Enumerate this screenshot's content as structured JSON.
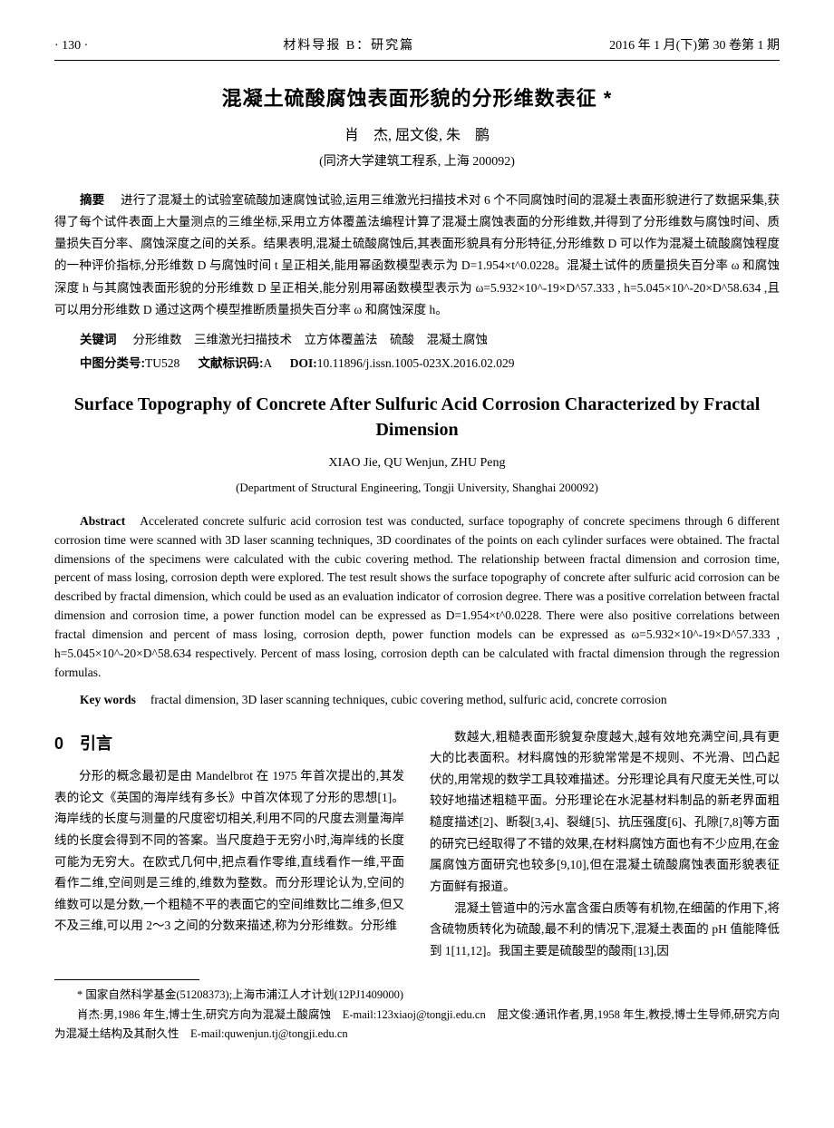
{
  "header": {
    "page_number": "· 130 ·",
    "journal_name": "材料导报 B：研究篇",
    "issue_info": "2016 年 1 月(下)第 30 卷第 1 期"
  },
  "title_cn": "混凝土硫酸腐蚀表面形貌的分形维数表征 *",
  "authors_cn": "肖　杰, 屈文俊, 朱　鹏",
  "affiliation_cn": "(同济大学建筑工程系, 上海 200092)",
  "abstract_cn_label": "摘要",
  "abstract_cn": "进行了混凝土的试验室硫酸加速腐蚀试验,运用三维激光扫描技术对 6 个不同腐蚀时间的混凝土表面形貌进行了数据采集,获得了每个试件表面上大量测点的三维坐标,采用立方体覆盖法编程计算了混凝土腐蚀表面的分形维数,并得到了分形维数与腐蚀时间、质量损失百分率、腐蚀深度之间的关系。结果表明,混凝土硫酸腐蚀后,其表面形貌具有分形特征,分形维数 D 可以作为混凝土硫酸腐蚀程度的一种评价指标,分形维数 D 与腐蚀时间 t 呈正相关,能用幂函数模型表示为 D=1.954×t^0.0228。混凝土试件的质量损失百分率 ω 和腐蚀深度 h 与其腐蚀表面形貌的分形维数 D 呈正相关,能分别用幂函数模型表示为 ω=5.932×10^-19×D^57.333 , h=5.045×10^-20×D^58.634 ,且可以用分形维数 D 通过这两个模型推断质量损失百分率 ω 和腐蚀深度 h。",
  "keywords_cn_label": "关键词",
  "keywords_cn": "分形维数　三维激光扫描技术　立方体覆盖法　硫酸　混凝土腐蚀",
  "class_label": "中图分类号:",
  "class_value": "TU528",
  "doc_code_label": "文献标识码:",
  "doc_code_value": "A",
  "doi_label": "DOI:",
  "doi_value": "10.11896/j.issn.1005-023X.2016.02.029",
  "title_en": "Surface Topography of Concrete After Sulfuric Acid Corrosion Characterized by Fractal Dimension",
  "authors_en": "XIAO Jie, QU Wenjun, ZHU Peng",
  "affiliation_en": "(Department of Structural Engineering, Tongji University, Shanghai 200092)",
  "abstract_en_label": "Abstract",
  "abstract_en": "Accelerated concrete sulfuric acid corrosion test was conducted, surface topography of concrete specimens through 6 different corrosion time were scanned with 3D laser scanning techniques, 3D coordinates of the points on each cylinder surfaces were obtained. The fractal dimensions of the specimens were calculated with the cubic covering method. The relationship between fractal dimension and corrosion time, percent of mass losing, corrosion depth were explored. The test result shows the surface topography of concrete after sulfuric acid corrosion can be described by fractal dimension, which could be used as an evaluation indicator of corrosion degree. There was a positive correlation between fractal dimension and corrosion time, a power function model can be expressed as D=1.954×t^0.0228. There were also positive correlations between fractal dimension and percent of mass losing, corrosion depth, power function models can be expressed as ω=5.932×10^-19×D^57.333 , h=5.045×10^-20×D^58.634 respectively. Percent of mass losing, corrosion depth can be calculated with fractal dimension through the regression formulas.",
  "keywords_en_label": "Key words",
  "keywords_en": "fractal dimension, 3D laser scanning techniques, cubic covering method, sulfuric acid, concrete corrosion",
  "section0_heading": "0　引言",
  "body_p1": "分形的概念最初是由 Mandelbrot 在 1975 年首次提出的,其发表的论文《英国的海岸线有多长》中首次体现了分形的思想[1]。海岸线的长度与测量的尺度密切相关,利用不同的尺度去测量海岸线的长度会得到不同的答案。当尺度趋于无穷小时,海岸线的长度可能为无穷大。在欧式几何中,把点看作零维,直线看作一维,平面看作二维,空间则是三维的,维数为整数。而分形理论认为,空间的维数可以是分数,一个粗糙不平的表面它的空间维数比二维多,但又不及三维,可以用 2～3 之间的分数来描述,称为分形维数。分形维",
  "body_p2": "数越大,粗糙表面形貌复杂度越大,越有效地充满空间,具有更大的比表面积。材料腐蚀的形貌常常是不规则、不光滑、凹凸起伏的,用常规的数学工具较难描述。分形理论具有尺度无关性,可以较好地描述粗糙平面。分形理论在水泥基材料制品的新老界面粗糙度描述[2]、断裂[3,4]、裂缝[5]、抗压强度[6]、孔隙[7,8]等方面的研究已经取得了不错的效果,在材料腐蚀方面也有不少应用,在金属腐蚀方面研究也较多[9,10],但在混凝土硫酸腐蚀表面形貌表征方面鲜有报道。",
  "body_p3": "混凝土管道中的污水富含蛋白质等有机物,在细菌的作用下,将含硫物质转化为硫酸,最不利的情况下,混凝土表面的 pH 值能降低到 1[11,12]。我国主要是硫酸型的酸雨[13],因",
  "footnote1": "* 国家自然科学基金(51208373);上海市浦江人才计划(12PJ1409000)",
  "footnote2": "肖杰:男,1986 年生,博士生,研究方向为混凝土酸腐蚀　E-mail:123xiaoj@tongji.edu.cn　屈文俊:通讯作者,男,1958 年生,教授,博士生导师,研究方向为混凝土结构及其耐久性　E-mail:quwenjun.tj@tongji.edu.cn"
}
